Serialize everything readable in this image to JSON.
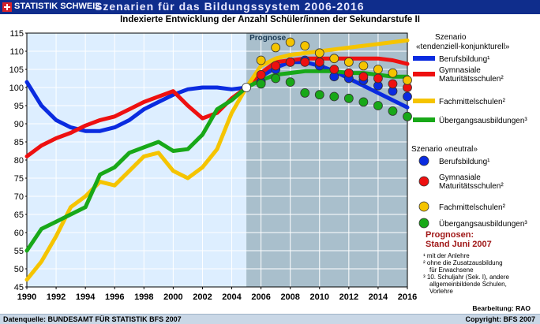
{
  "header": {
    "logo_text": "STATISTIK SCHWEIZ",
    "title": "Szenarien für das Bildungssystem 2006-2016",
    "subtitle": "Indexierte Entwicklung der Anzahl Schüler/innen der Sekundarstufe II"
  },
  "footer": {
    "source": "Datenquelle: BUNDESAMT FÜR STATISTIK BFS 2007",
    "copyright": "Copyright:  BFS 2007",
    "credit": "Bearbeitung: RAO"
  },
  "notes": {
    "prognosen_line1": "Prognosen:",
    "prognosen_line2": "Stand Juni 2007",
    "fn1": "¹ mit der Anlehre",
    "fn2a": "² ohne die Zusatzausbildung",
    "fn2b": "für Erwachsene",
    "fn3a": "³ 10. Schuljahr (Sek. I), andere",
    "fn3b": "allgemeinbildende Schulen,",
    "fn3c": "Vorlehre"
  },
  "colors": {
    "header_bg": "#0f2d8c",
    "plot_bg_history": "#ddeeff",
    "plot_bg_forecast": "#a9bfcc",
    "berufsbildung": "#0a2be0",
    "gymnasiale": "#ee1010",
    "fachmittelschulen": "#f5c400",
    "uebergang": "#18a818"
  },
  "chart_data": {
    "type": "line",
    "prognose_label": "Prognose",
    "prognose_start": 2005,
    "xlim": [
      1990,
      2016
    ],
    "ylim": [
      45,
      115
    ],
    "xticks": [
      "1990",
      "1992",
      "1994",
      "1996",
      "1998",
      "2000",
      "2002",
      "2004",
      "2006",
      "2008",
      "2010",
      "2012",
      "2014",
      "2016"
    ],
    "yticks": [
      "45",
      "50",
      "55",
      "60",
      "65",
      "70",
      "75",
      "80",
      "85",
      "90",
      "95",
      "100",
      "105",
      "110",
      "115"
    ],
    "legend_group1_title": "Szenario «tendenziell-konjunkturell»",
    "legend_group2_title": "Szenario «neutral»",
    "series": [
      {
        "name": "Berufsbildung¹",
        "color_key": "berufsbildung",
        "line_x": [
          1990,
          1991,
          1992,
          1993,
          1994,
          1995,
          1996,
          1997,
          1998,
          1999,
          2000,
          2001,
          2002,
          2003,
          2004,
          2005,
          2006,
          2007,
          2008,
          2009,
          2010,
          2011,
          2012,
          2013,
          2014,
          2015,
          2016
        ],
        "line_y": [
          101.5,
          95,
          91,
          89,
          88,
          88,
          89,
          91,
          94,
          96,
          98,
          99.5,
          100,
          100,
          99.5,
          100,
          103,
          105.5,
          107,
          107,
          106,
          104.5,
          102.5,
          100.5,
          98.5,
          96.5,
          94.5
        ],
        "dots_x": [
          2006,
          2007,
          2008,
          2009,
          2010,
          2011,
          2012,
          2013,
          2014,
          2015,
          2016
        ],
        "dots_y": [
          101.5,
          105,
          107,
          107.5,
          106,
          103,
          102.5,
          102,
          100.5,
          99,
          97.5
        ]
      },
      {
        "name": "Gymnasiale Maturitätsschulen²",
        "color_key": "gymnasiale",
        "line_x": [
          1990,
          1991,
          1992,
          1993,
          1994,
          1995,
          1996,
          1997,
          1998,
          1999,
          2000,
          2001,
          2002,
          2003,
          2004,
          2005,
          2006,
          2007,
          2008,
          2009,
          2010,
          2011,
          2012,
          2013,
          2014,
          2015,
          2016
        ],
        "line_y": [
          81,
          84,
          86,
          87.5,
          89.5,
          91,
          92,
          94,
          96,
          97.5,
          99,
          95,
          91.5,
          93,
          97,
          100,
          104,
          107,
          107.5,
          108,
          108,
          108,
          108,
          108,
          108,
          107.5,
          106.5
        ],
        "dots_x": [
          2006,
          2007,
          2008,
          2009,
          2010,
          2011,
          2012,
          2013,
          2014,
          2015,
          2016
        ],
        "dots_y": [
          103.5,
          106,
          107,
          107,
          107,
          105,
          104,
          103,
          102.5,
          101,
          100
        ]
      },
      {
        "name": "Fachmittelschulen²",
        "color_key": "fachmittelschulen",
        "line_x": [
          1990,
          1991,
          1992,
          1993,
          1994,
          1995,
          1996,
          1997,
          1998,
          1999,
          2000,
          2001,
          2002,
          2003,
          2004,
          2005,
          2006,
          2007,
          2008,
          2009,
          2010,
          2011,
          2012,
          2013,
          2014,
          2015,
          2016
        ],
        "line_y": [
          47,
          52,
          59,
          67,
          70,
          74,
          73,
          77,
          81,
          82,
          77,
          75,
          78,
          83,
          93,
          100,
          106,
          108,
          109,
          109.5,
          110,
          110.5,
          111,
          111.5,
          112,
          112.5,
          113
        ],
        "dots_x": [
          2006,
          2007,
          2008,
          2009,
          2010,
          2011,
          2012,
          2013,
          2014,
          2015,
          2016
        ],
        "dots_y": [
          107.5,
          111,
          112.5,
          111.5,
          109.5,
          108,
          107,
          106,
          105,
          104,
          102
        ]
      },
      {
        "name": "Übergangsausbildungen³",
        "color_key": "uebergang",
        "line_x": [
          1990,
          1991,
          1992,
          1993,
          1994,
          1995,
          1996,
          1997,
          1998,
          1999,
          2000,
          2001,
          2002,
          2003,
          2004,
          2005,
          2006,
          2007,
          2008,
          2009,
          2010,
          2011,
          2012,
          2013,
          2014,
          2015,
          2016
        ],
        "line_y": [
          55,
          61,
          63,
          65,
          67,
          76,
          78,
          82,
          83.5,
          85,
          82.5,
          83,
          87,
          94,
          96.5,
          100,
          102,
          103.5,
          104,
          104.5,
          104.5,
          104.5,
          104,
          104,
          103.5,
          103,
          103
        ],
        "dots_x": [
          2006,
          2007,
          2008,
          2009,
          2010,
          2011,
          2012,
          2013,
          2014,
          2015,
          2016
        ],
        "dots_y": [
          101,
          102.5,
          101.5,
          98.5,
          98,
          97.5,
          97,
          96,
          95,
          93.5,
          92
        ]
      }
    ]
  }
}
